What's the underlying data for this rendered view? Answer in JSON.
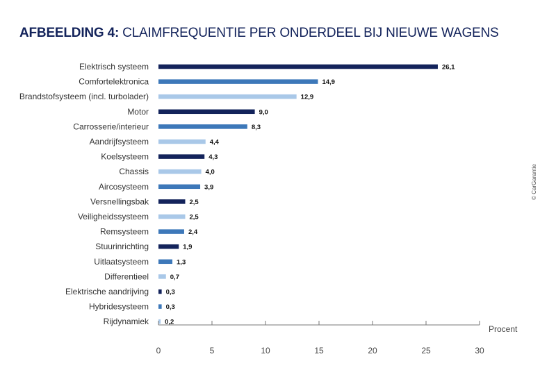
{
  "title": {
    "prefix": "AFBEELDING 4:",
    "text": "CLAIMFREQUENTIE PER ONDERDEEL BIJ NIEUWE WAGENS"
  },
  "credit": "© CarGarantie",
  "colors": {
    "dark": "#13235b",
    "mid": "#3d78b9",
    "light": "#a9c8e8"
  },
  "chart_data": {
    "type": "bar",
    "orientation": "horizontal",
    "categories": [
      "Elektrisch systeem",
      "Comfortelektronica",
      "Brandstofsysteem (incl. turbolader)",
      "Motor",
      "Carrosserie/interieur",
      "Aandrijfsysteem",
      "Koelsysteem",
      "Chassis",
      "Aircosysteem",
      "Versnellingsbak",
      "Veiligheidssysteem",
      "Remsysteem",
      "Stuurinrichting",
      "Uitlaatsysteem",
      "Differentieel",
      "Elektrische aandrijving",
      "Hybridesysteem",
      "Rijdynamiek"
    ],
    "values": [
      26.1,
      14.9,
      12.9,
      9.0,
      8.3,
      4.4,
      4.3,
      4.0,
      3.9,
      2.5,
      2.5,
      2.4,
      1.9,
      1.3,
      0.7,
      0.3,
      0.3,
      0.2
    ],
    "value_labels": [
      "26,1",
      "14,9",
      "12,9",
      "9,0",
      "8,3",
      "4,4",
      "4,3",
      "4,0",
      "3,9",
      "2,5",
      "2,5",
      "2,4",
      "1,9",
      "1,3",
      "0,7",
      "0,3",
      "0,3",
      "0,2"
    ],
    "bar_colors": [
      "dark",
      "mid",
      "light",
      "dark",
      "mid",
      "light",
      "dark",
      "light",
      "mid",
      "dark",
      "light",
      "mid",
      "dark",
      "mid",
      "light",
      "dark",
      "mid",
      "light"
    ],
    "xlim": [
      0,
      30
    ],
    "xticks": [
      0,
      5,
      10,
      15,
      20,
      25,
      30
    ],
    "xlabel": "Procent",
    "grid": false
  }
}
